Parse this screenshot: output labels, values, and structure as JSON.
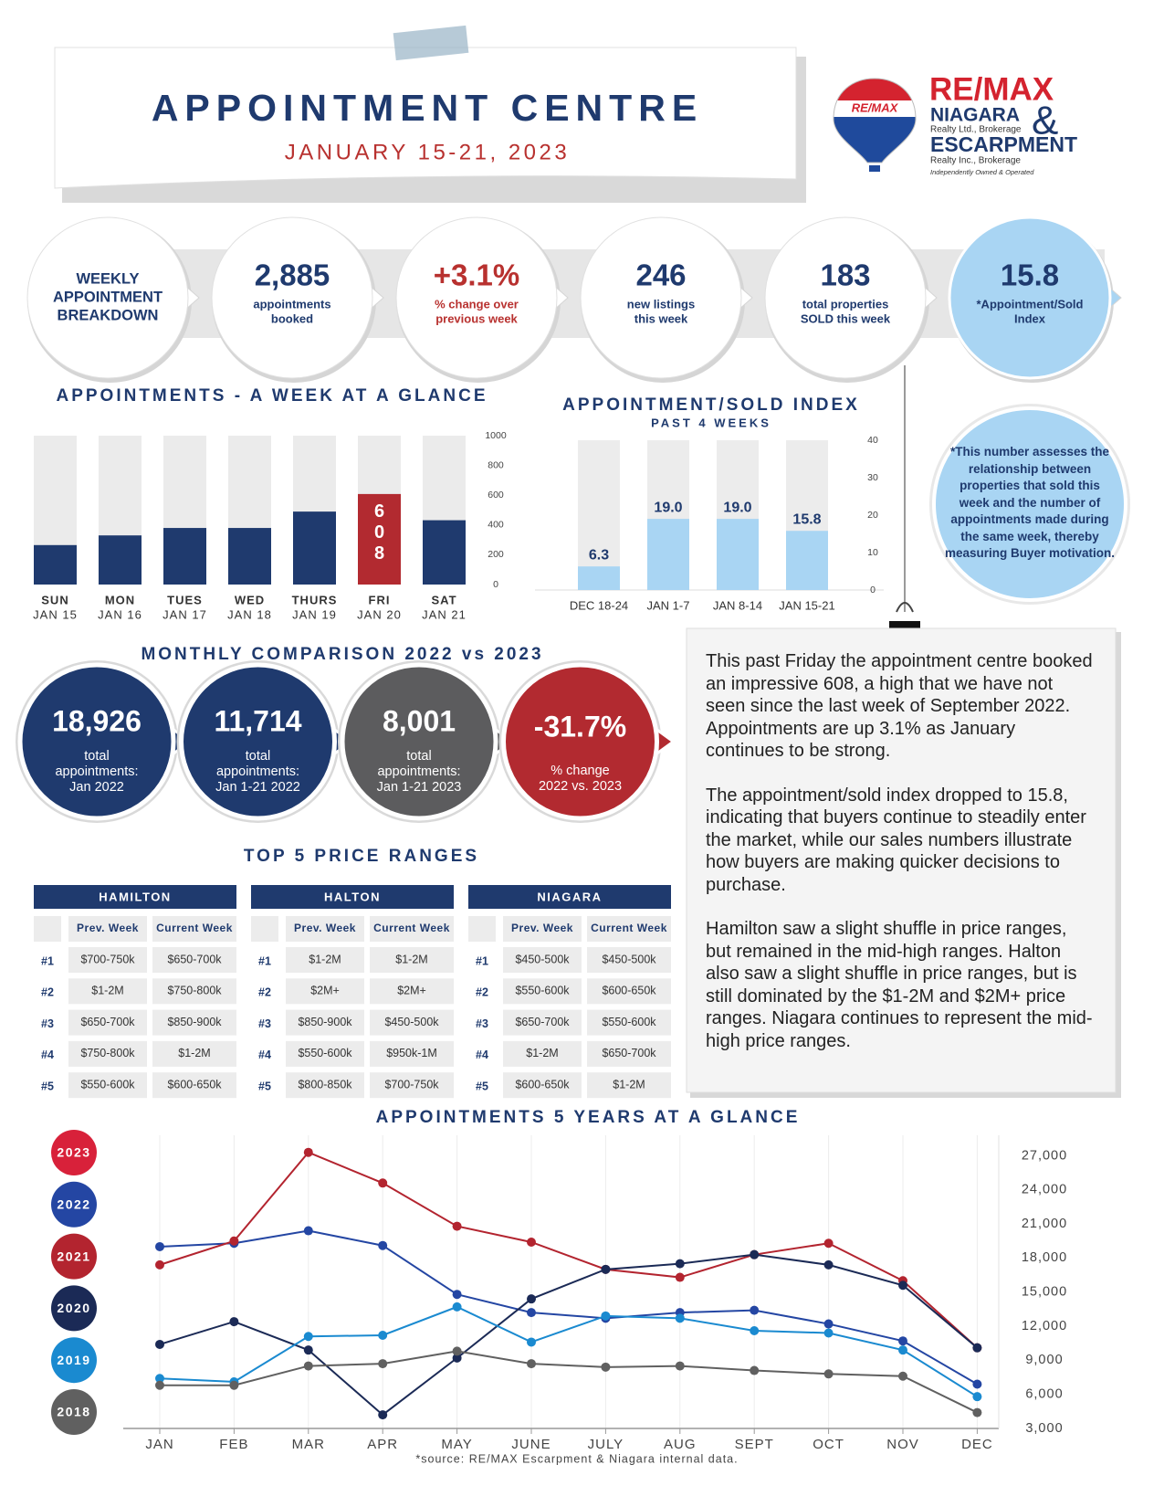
{
  "header": {
    "title": "APPOINTMENT CENTRE",
    "subtitle": "JANUARY 15-21, 2023"
  },
  "logo": {
    "balloon": "RE/MAX",
    "brand": "RE/MAX",
    "line1": "NIAGARA",
    "line1_sub": "Realty Ltd., Brokerage",
    "amp": "&",
    "line2": "ESCARPMENT",
    "line2_sub": "Realty Inc., Brokerage",
    "note": "Independently Owned & Operated"
  },
  "weekly": {
    "label": [
      "WEEKLY",
      "APPOINTMENT",
      "BREAKDOWN"
    ],
    "items": [
      {
        "value": "2,885",
        "caption": [
          "appointments",
          "booked"
        ]
      },
      {
        "value": "+3.1%",
        "caption": [
          "% change over",
          "previous week"
        ]
      },
      {
        "value": "246",
        "caption": [
          "new listings",
          "this week"
        ]
      },
      {
        "value": "183",
        "caption": [
          "total properties",
          "SOLD this week"
        ]
      },
      {
        "value": "15.8",
        "caption": [
          "*Appointment/Sold",
          "Index"
        ]
      }
    ]
  },
  "index_note": "*This number assesses the relationship between properties that sold this week and the number of appointments made during the same week, thereby measuring Buyer motivation.",
  "monthly": {
    "title": "MONTHLY COMPARISON 2022 vs 2023",
    "items": [
      {
        "value": "18,926",
        "caption": [
          "total",
          "appointments:",
          "Jan 2022"
        ]
      },
      {
        "value": "11,714",
        "caption": [
          "total",
          "appointments:",
          "Jan 1-21 2022"
        ]
      },
      {
        "value": "8,001",
        "caption": [
          "total",
          "appointments:",
          "Jan 1-21 2023"
        ]
      },
      {
        "value": "-31.7%",
        "caption": [
          "% change",
          "2022 vs. 2023"
        ]
      }
    ]
  },
  "price_ranges": {
    "title": "TOP 5 PRICE RANGES",
    "tables": [
      {
        "name": "HAMILTON",
        "headers": [
          "Prev. Week",
          "Current Week"
        ],
        "rows": [
          [
            "#1",
            "$700-750k",
            "$650-700k"
          ],
          [
            "#2",
            "$1-2M",
            "$750-800k"
          ],
          [
            "#3",
            "$650-700k",
            "$850-900k"
          ],
          [
            "#4",
            "$750-800k",
            "$1-2M"
          ],
          [
            "#5",
            "$550-600k",
            "$600-650k"
          ]
        ]
      },
      {
        "name": "HALTON",
        "headers": [
          "Prev. Week",
          "Current Week"
        ],
        "rows": [
          [
            "#1",
            "$1-2M",
            "$1-2M"
          ],
          [
            "#2",
            "$2M+",
            "$2M+"
          ],
          [
            "#3",
            "$850-900k",
            "$450-500k"
          ],
          [
            "#4",
            "$550-600k",
            "$950k-1M"
          ],
          [
            "#5",
            "$800-850k",
            "$700-750k"
          ]
        ]
      },
      {
        "name": "NIAGARA",
        "headers": [
          "Prev. Week",
          "Current Week"
        ],
        "rows": [
          [
            "#1",
            "$450-500k",
            "$450-500k"
          ],
          [
            "#2",
            "$550-600k",
            "$600-650k"
          ],
          [
            "#3",
            "$650-700k",
            "$550-600k"
          ],
          [
            "#4",
            "$1-2M",
            "$650-700k"
          ],
          [
            "#5",
            "$600-650k",
            "$1-2M"
          ]
        ]
      }
    ]
  },
  "commentary": [
    "This past Friday the appointment centre booked an impressive 608, a high that we have not seen since the last week of September 2022. Appointments are up 3.1% as January continues to be strong.",
    "The appointment/sold index dropped to 15.8, indicating that buyers continue to steadily enter the market, while our sales numbers illustrate how buyers are making quicker decisions to purchase.",
    "Hamilton saw a slight shuffle in price ranges, but remained in the mid-high ranges. Halton also saw a slight shuffle in price ranges, but is still dominated by the $1-2M and $2M+ price ranges. Niagara continues to represent the mid-high price ranges."
  ],
  "source": "*source:  RE/MAX Escarpment & Niagara internal data.",
  "chart_data": [
    {
      "type": "bar",
      "title": "APPOINTMENTS - A WEEK AT A GLANCE",
      "categories": [
        "SUN",
        "MON",
        "TUES",
        "WED",
        "THURS",
        "FRI",
        "SAT"
      ],
      "sublabels": [
        "JAN 15",
        "JAN 16",
        "JAN 17",
        "JAN 18",
        "JAN 19",
        "JAN 20",
        "JAN 21"
      ],
      "values": [
        265,
        330,
        380,
        380,
        490,
        608,
        432
      ],
      "value_labels": [
        null,
        null,
        null,
        null,
        null,
        "608",
        null
      ],
      "colors": [
        "#1f3a6e",
        "#1f3a6e",
        "#1f3a6e",
        "#1f3a6e",
        "#1f3a6e",
        "#b22a30",
        "#1f3a6e"
      ],
      "background_color": "#ebebeb",
      "ylim": [
        0,
        1000
      ],
      "yticks": [
        0,
        200,
        400,
        600,
        800,
        1000
      ]
    },
    {
      "type": "bar",
      "title": "APPOINTMENT/SOLD INDEX",
      "subtitle": "PAST 4 WEEKS",
      "categories": [
        "DEC 18-24",
        "JAN 1-7",
        "JAN 8-14",
        "JAN 15-21"
      ],
      "values": [
        6.3,
        19.0,
        19.0,
        15.8
      ],
      "value_labels": [
        "6.3",
        "19.0",
        "19.0",
        "15.8"
      ],
      "color": "#a9d5f3",
      "background_color": "#ececec",
      "ylim": [
        0,
        40
      ],
      "yticks": [
        0,
        10,
        20,
        30,
        40
      ]
    },
    {
      "type": "line",
      "title": "APPOINTMENTS 5 YEARS AT A GLANCE",
      "categories": [
        "JAN",
        "FEB",
        "MAR",
        "APR",
        "MAY",
        "JUNE",
        "JULY",
        "AUG",
        "SEPT",
        "OCT",
        "NOV",
        "DEC"
      ],
      "series": [
        {
          "name": "2023",
          "color": "#d8213a",
          "values": [
            null,
            null,
            null,
            null,
            null,
            null,
            null,
            null,
            null,
            null,
            null,
            null
          ]
        },
        {
          "name": "2022",
          "color": "#2446a3",
          "values": [
            19000,
            19300,
            20400,
            19100,
            14800,
            13200,
            12700,
            13200,
            13400,
            12200,
            10700,
            6900
          ]
        },
        {
          "name": "2021",
          "color": "#b3242f",
          "values": [
            17400,
            19500,
            27300,
            24600,
            20800,
            19400,
            17000,
            16300,
            18300,
            19300,
            16000,
            10100
          ]
        },
        {
          "name": "2020",
          "color": "#1b2a56",
          "values": [
            10400,
            12400,
            9900,
            4200,
            9200,
            14400,
            17000,
            17500,
            18300,
            17400,
            15600,
            10100
          ]
        },
        {
          "name": "2019",
          "color": "#1a8ad0",
          "values": [
            7400,
            7100,
            11100,
            11200,
            13700,
            10600,
            12900,
            12700,
            11600,
            11400,
            9900,
            5800
          ]
        },
        {
          "name": "2018",
          "color": "#606060",
          "values": [
            6800,
            6800,
            8500,
            8700,
            9800,
            8700,
            8400,
            8500,
            8100,
            7800,
            7600,
            4400
          ]
        }
      ],
      "ylim": [
        3000,
        28000
      ],
      "yticks": [
        {
          "value": 3000,
          "label": "3,000"
        },
        {
          "value": 6000,
          "label": "6,000"
        },
        {
          "value": 9000,
          "label": "9,000"
        },
        {
          "value": 12000,
          "label": "12,000"
        },
        {
          "value": 15000,
          "label": "15,000"
        },
        {
          "value": 18000,
          "label": "18,000"
        },
        {
          "value": 21000,
          "label": "21,000"
        },
        {
          "value": 24000,
          "label": "24,000"
        },
        {
          "value": 27000,
          "label": "27,000"
        }
      ],
      "grid": true,
      "legend": "left"
    }
  ]
}
